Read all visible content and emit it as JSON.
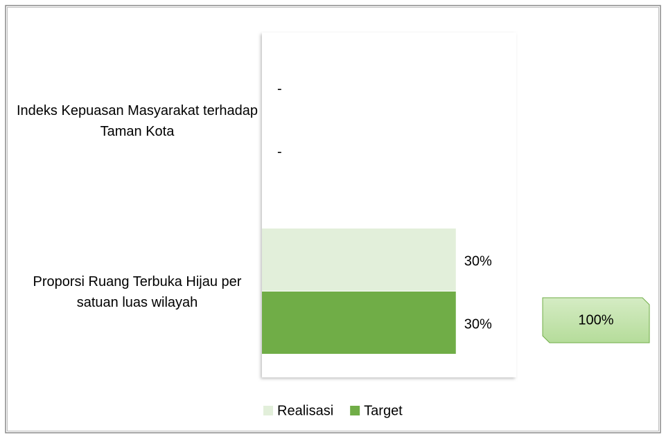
{
  "chart_data": {
    "type": "barh",
    "categories": [
      "Indeks Kepuasan Masyarakat terhadap Taman Kota",
      "Proporsi Ruang Terbuka Hijau per satuan luas wilayah"
    ],
    "series": [
      {
        "name": "Realisasi",
        "color": "#e2efda",
        "values": [
          null,
          30
        ],
        "value_labels": [
          "-",
          "30%"
        ]
      },
      {
        "name": "Target",
        "color": "#70ad47",
        "values": [
          null,
          30
        ],
        "value_labels": [
          "-",
          "30%"
        ]
      }
    ],
    "xlim": [
      0,
      40
    ],
    "annotation": "100%"
  }
}
